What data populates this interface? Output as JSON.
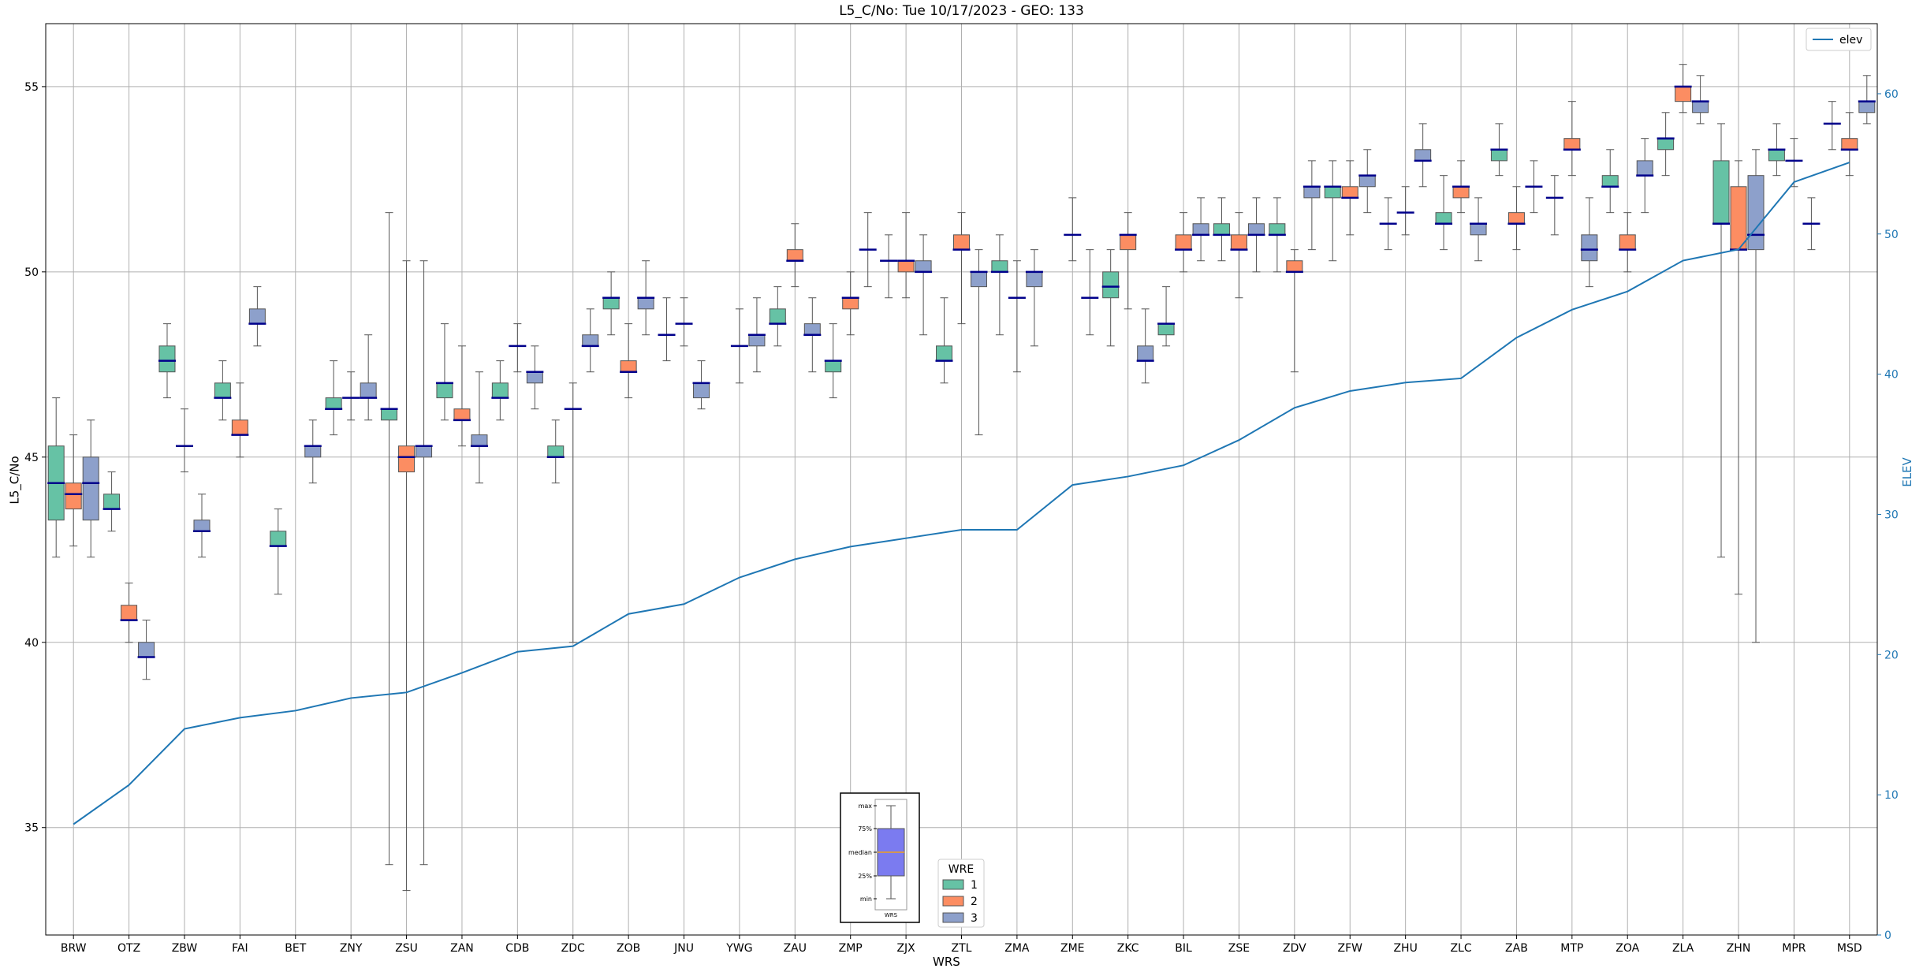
{
  "colors": {
    "wre1": "#66c2a5",
    "wre2": "#fc8d62",
    "wre3": "#8da0cb",
    "median": "#00008b",
    "whisker": "#555555",
    "elev": "#1f77b4",
    "grid": "#b0b0b0",
    "key_box": "#7b7bf0",
    "key_median": "#f0a020"
  },
  "chart_data": {
    "type": "box",
    "title": "L5_C/No: Tue 10/17/2023 - GEO: 133",
    "xlabel": "WRS",
    "ylabel": "L5_C/No",
    "y2label": "ELEV",
    "ylim": [
      32.1,
      56.7
    ],
    "y2lim": [
      0,
      65
    ],
    "yticks": [
      35,
      40,
      45,
      50,
      55
    ],
    "y2ticks": [
      0,
      10,
      20,
      30,
      40,
      50,
      60
    ],
    "grid": true,
    "categories": [
      "BRW",
      "OTZ",
      "ZBW",
      "FAI",
      "BET",
      "ZNY",
      "ZSU",
      "ZAN",
      "CDB",
      "ZDC",
      "ZOB",
      "JNU",
      "YWG",
      "ZAU",
      "ZMP",
      "ZJX",
      "ZTL",
      "ZMA",
      "ZME",
      "ZKC",
      "BIL",
      "ZSE",
      "ZDV",
      "ZFW",
      "ZHU",
      "ZLC",
      "ZAB",
      "MTP",
      "ZOA",
      "ZLA",
      "ZHN",
      "MPR",
      "MSD"
    ],
    "legend": {
      "title": "WRE",
      "entries": [
        "1",
        "2",
        "3"
      ],
      "placement": "bottom-center"
    },
    "line_legend": {
      "label": "elev",
      "placement": "top-right"
    },
    "box_key": {
      "labels": [
        "max",
        "75%",
        "median",
        "25%",
        "min"
      ],
      "caption": "WRS"
    },
    "elevation": [
      7.9,
      10.7,
      14.7,
      15.5,
      16.0,
      16.9,
      17.3,
      18.7,
      20.2,
      20.6,
      22.9,
      23.6,
      25.5,
      26.8,
      27.7,
      28.3,
      28.9,
      28.9,
      32.1,
      32.7,
      33.5,
      35.3,
      37.6,
      38.8,
      39.4,
      39.7,
      42.6,
      44.6,
      45.9,
      48.1,
      48.9,
      53.7,
      55.1
    ],
    "boxes": [
      {
        "wrs": "BRW",
        "wre": 1,
        "min": 42.3,
        "q1": 43.3,
        "median": 44.3,
        "q3": 45.3,
        "max": 46.6
      },
      {
        "wrs": "BRW",
        "wre": 2,
        "min": 42.6,
        "q1": 43.6,
        "median": 44.0,
        "q3": 44.3,
        "max": 45.6
      },
      {
        "wrs": "BRW",
        "wre": 3,
        "min": 42.3,
        "q1": 43.3,
        "median": 44.3,
        "q3": 45.0,
        "max": 46.0
      },
      {
        "wrs": "OTZ",
        "wre": 1,
        "min": 43.0,
        "q1": 43.6,
        "median": 43.6,
        "q3": 44.0,
        "max": 44.6
      },
      {
        "wrs": "OTZ",
        "wre": 2,
        "min": 40.0,
        "q1": 40.6,
        "median": 40.6,
        "q3": 41.0,
        "max": 41.6
      },
      {
        "wrs": "OTZ",
        "wre": 3,
        "min": 39.0,
        "q1": 39.6,
        "median": 39.6,
        "q3": 40.0,
        "max": 40.6
      },
      {
        "wrs": "ZBW",
        "wre": 1,
        "min": 46.6,
        "q1": 47.3,
        "median": 47.6,
        "q3": 48.0,
        "max": 48.6
      },
      {
        "wrs": "ZBW",
        "wre": 2,
        "min": 44.6,
        "q1": 45.3,
        "median": 45.3,
        "q3": 45.3,
        "max": 46.3
      },
      {
        "wrs": "ZBW",
        "wre": 3,
        "min": 42.3,
        "q1": 43.0,
        "median": 43.0,
        "q3": 43.3,
        "max": 44.0
      },
      {
        "wrs": "FAI",
        "wre": 1,
        "min": 46.0,
        "q1": 46.6,
        "median": 46.6,
        "q3": 47.0,
        "max": 47.6
      },
      {
        "wrs": "FAI",
        "wre": 2,
        "min": 45.0,
        "q1": 45.6,
        "median": 45.6,
        "q3": 46.0,
        "max": 47.0
      },
      {
        "wrs": "FAI",
        "wre": 3,
        "min": 48.0,
        "q1": 48.6,
        "median": 48.6,
        "q3": 49.0,
        "max": 49.6
      },
      {
        "wrs": "BET",
        "wre": 1,
        "min": 41.3,
        "q1": 42.6,
        "median": 42.6,
        "q3": 43.0,
        "max": 43.6
      },
      {
        "wrs": "BET",
        "wre": 3,
        "min": 44.3,
        "q1": 45.0,
        "median": 45.3,
        "q3": 45.3,
        "max": 46.0
      },
      {
        "wrs": "ZNY",
        "wre": 1,
        "min": 45.6,
        "q1": 46.3,
        "median": 46.3,
        "q3": 46.6,
        "max": 47.6
      },
      {
        "wrs": "ZNY",
        "wre": 2,
        "min": 46.0,
        "q1": 46.6,
        "median": 46.6,
        "q3": 46.6,
        "max": 47.3
      },
      {
        "wrs": "ZNY",
        "wre": 3,
        "min": 46.0,
        "q1": 46.6,
        "median": 46.6,
        "q3": 47.0,
        "max": 48.3
      },
      {
        "wrs": "ZSU",
        "wre": 1,
        "min": 34.0,
        "q1": 46.0,
        "median": 46.3,
        "q3": 46.3,
        "max": 51.6
      },
      {
        "wrs": "ZSU",
        "wre": 2,
        "min": 33.3,
        "q1": 44.6,
        "median": 45.0,
        "q3": 45.3,
        "max": 50.3
      },
      {
        "wrs": "ZSU",
        "wre": 3,
        "min": 34.0,
        "q1": 45.0,
        "median": 45.3,
        "q3": 45.3,
        "max": 50.3
      },
      {
        "wrs": "ZAN",
        "wre": 1,
        "min": 46.0,
        "q1": 46.6,
        "median": 47.0,
        "q3": 47.0,
        "max": 48.6
      },
      {
        "wrs": "ZAN",
        "wre": 2,
        "min": 45.3,
        "q1": 46.0,
        "median": 46.0,
        "q3": 46.3,
        "max": 48.0
      },
      {
        "wrs": "ZAN",
        "wre": 3,
        "min": 44.3,
        "q1": 45.3,
        "median": 45.3,
        "q3": 45.6,
        "max": 47.3
      },
      {
        "wrs": "CDB",
        "wre": 1,
        "min": 46.0,
        "q1": 46.6,
        "median": 46.6,
        "q3": 47.0,
        "max": 47.6
      },
      {
        "wrs": "CDB",
        "wre": 2,
        "min": 47.3,
        "q1": 48.0,
        "median": 48.0,
        "q3": 48.0,
        "max": 48.6
      },
      {
        "wrs": "CDB",
        "wre": 3,
        "min": 46.3,
        "q1": 47.0,
        "median": 47.3,
        "q3": 47.3,
        "max": 48.0
      },
      {
        "wrs": "ZDC",
        "wre": 1,
        "min": 44.3,
        "q1": 45.0,
        "median": 45.0,
        "q3": 45.3,
        "max": 46.0
      },
      {
        "wrs": "ZDC",
        "wre": 2,
        "min": 40.0,
        "q1": 46.3,
        "median": 46.3,
        "q3": 46.3,
        "max": 47.0
      },
      {
        "wrs": "ZDC",
        "wre": 3,
        "min": 47.3,
        "q1": 48.0,
        "median": 48.0,
        "q3": 48.3,
        "max": 49.0
      },
      {
        "wrs": "ZOB",
        "wre": 1,
        "min": 48.3,
        "q1": 49.0,
        "median": 49.3,
        "q3": 49.3,
        "max": 50.0
      },
      {
        "wrs": "ZOB",
        "wre": 2,
        "min": 46.6,
        "q1": 47.3,
        "median": 47.3,
        "q3": 47.6,
        "max": 48.6
      },
      {
        "wrs": "ZOB",
        "wre": 3,
        "min": 48.3,
        "q1": 49.0,
        "median": 49.3,
        "q3": 49.3,
        "max": 50.3
      },
      {
        "wrs": "JNU",
        "wre": 1,
        "min": 47.6,
        "q1": 48.3,
        "median": 48.3,
        "q3": 48.3,
        "max": 49.3
      },
      {
        "wrs": "JNU",
        "wre": 2,
        "min": 48.0,
        "q1": 48.6,
        "median": 48.6,
        "q3": 48.6,
        "max": 49.3
      },
      {
        "wrs": "JNU",
        "wre": 3,
        "min": 46.3,
        "q1": 46.6,
        "median": 47.0,
        "q3": 47.0,
        "max": 47.6
      },
      {
        "wrs": "YWG",
        "wre": 2,
        "min": 47.0,
        "q1": 48.0,
        "median": 48.0,
        "q3": 48.0,
        "max": 49.0
      },
      {
        "wrs": "YWG",
        "wre": 3,
        "min": 47.3,
        "q1": 48.0,
        "median": 48.3,
        "q3": 48.3,
        "max": 49.3
      },
      {
        "wrs": "ZAU",
        "wre": 1,
        "min": 48.0,
        "q1": 48.6,
        "median": 48.6,
        "q3": 49.0,
        "max": 49.6
      },
      {
        "wrs": "ZAU",
        "wre": 2,
        "min": 49.6,
        "q1": 50.3,
        "median": 50.3,
        "q3": 50.6,
        "max": 51.3
      },
      {
        "wrs": "ZAU",
        "wre": 3,
        "min": 47.3,
        "q1": 48.3,
        "median": 48.3,
        "q3": 48.6,
        "max": 49.3
      },
      {
        "wrs": "ZMP",
        "wre": 1,
        "min": 46.6,
        "q1": 47.3,
        "median": 47.6,
        "q3": 47.6,
        "max": 48.6
      },
      {
        "wrs": "ZMP",
        "wre": 2,
        "min": 48.3,
        "q1": 49.0,
        "median": 49.3,
        "q3": 49.3,
        "max": 50.0
      },
      {
        "wrs": "ZMP",
        "wre": 3,
        "min": 49.6,
        "q1": 50.6,
        "median": 50.6,
        "q3": 50.6,
        "max": 51.6
      },
      {
        "wrs": "ZJX",
        "wre": 1,
        "min": 49.3,
        "q1": 50.3,
        "median": 50.3,
        "q3": 50.3,
        "max": 51.0
      },
      {
        "wrs": "ZJX",
        "wre": 2,
        "min": 49.3,
        "q1": 50.0,
        "median": 50.3,
        "q3": 50.3,
        "max": 51.6
      },
      {
        "wrs": "ZJX",
        "wre": 3,
        "min": 48.3,
        "q1": 50.0,
        "median": 50.0,
        "q3": 50.3,
        "max": 51.0
      },
      {
        "wrs": "ZTL",
        "wre": 1,
        "min": 47.0,
        "q1": 47.6,
        "median": 47.6,
        "q3": 48.0,
        "max": 49.3
      },
      {
        "wrs": "ZTL",
        "wre": 2,
        "min": 48.6,
        "q1": 50.6,
        "median": 50.6,
        "q3": 51.0,
        "max": 51.6
      },
      {
        "wrs": "ZTL",
        "wre": 3,
        "min": 45.6,
        "q1": 49.6,
        "median": 50.0,
        "q3": 50.0,
        "max": 50.6
      },
      {
        "wrs": "ZMA",
        "wre": 1,
        "min": 48.3,
        "q1": 50.0,
        "median": 50.0,
        "q3": 50.3,
        "max": 51.0
      },
      {
        "wrs": "ZMA",
        "wre": 2,
        "min": 47.3,
        "q1": 49.3,
        "median": 49.3,
        "q3": 49.3,
        "max": 50.3
      },
      {
        "wrs": "ZMA",
        "wre": 3,
        "min": 48.0,
        "q1": 49.6,
        "median": 50.0,
        "q3": 50.0,
        "max": 50.6
      },
      {
        "wrs": "ZME",
        "wre": 2,
        "min": 50.3,
        "q1": 51.0,
        "median": 51.0,
        "q3": 51.0,
        "max": 52.0
      },
      {
        "wrs": "ZME",
        "wre": 3,
        "min": 48.3,
        "q1": 49.3,
        "median": 49.3,
        "q3": 49.3,
        "max": 50.6
      },
      {
        "wrs": "ZKC",
        "wre": 1,
        "min": 48.0,
        "q1": 49.3,
        "median": 49.6,
        "q3": 50.0,
        "max": 50.6
      },
      {
        "wrs": "ZKC",
        "wre": 2,
        "min": 49.0,
        "q1": 50.6,
        "median": 51.0,
        "q3": 51.0,
        "max": 51.6
      },
      {
        "wrs": "ZKC",
        "wre": 3,
        "min": 47.0,
        "q1": 47.6,
        "median": 47.6,
        "q3": 48.0,
        "max": 49.0
      },
      {
        "wrs": "BIL",
        "wre": 1,
        "min": 48.0,
        "q1": 48.3,
        "median": 48.6,
        "q3": 48.6,
        "max": 49.6
      },
      {
        "wrs": "BIL",
        "wre": 2,
        "min": 50.0,
        "q1": 50.6,
        "median": 50.6,
        "q3": 51.0,
        "max": 51.6
      },
      {
        "wrs": "BIL",
        "wre": 3,
        "min": 50.3,
        "q1": 51.0,
        "median": 51.0,
        "q3": 51.3,
        "max": 52.0
      },
      {
        "wrs": "ZSE",
        "wre": 1,
        "min": 50.3,
        "q1": 51.0,
        "median": 51.0,
        "q3": 51.3,
        "max": 52.0
      },
      {
        "wrs": "ZSE",
        "wre": 2,
        "min": 49.3,
        "q1": 50.6,
        "median": 50.6,
        "q3": 51.0,
        "max": 51.6
      },
      {
        "wrs": "ZSE",
        "wre": 3,
        "min": 50.0,
        "q1": 51.0,
        "median": 51.0,
        "q3": 51.3,
        "max": 52.0
      },
      {
        "wrs": "ZDV",
        "wre": 1,
        "min": 50.0,
        "q1": 51.0,
        "median": 51.0,
        "q3": 51.3,
        "max": 52.0
      },
      {
        "wrs": "ZDV",
        "wre": 2,
        "min": 47.3,
        "q1": 50.0,
        "median": 50.0,
        "q3": 50.3,
        "max": 50.6
      },
      {
        "wrs": "ZDV",
        "wre": 3,
        "min": 50.6,
        "q1": 52.0,
        "median": 52.3,
        "q3": 52.3,
        "max": 53.0
      },
      {
        "wrs": "ZFW",
        "wre": 1,
        "min": 50.3,
        "q1": 52.0,
        "median": 52.3,
        "q3": 52.3,
        "max": 53.0
      },
      {
        "wrs": "ZFW",
        "wre": 2,
        "min": 51.0,
        "q1": 52.0,
        "median": 52.0,
        "q3": 52.3,
        "max": 53.0
      },
      {
        "wrs": "ZFW",
        "wre": 3,
        "min": 51.6,
        "q1": 52.3,
        "median": 52.6,
        "q3": 52.6,
        "max": 53.3
      },
      {
        "wrs": "ZHU",
        "wre": 1,
        "min": 50.6,
        "q1": 51.3,
        "median": 51.3,
        "q3": 51.3,
        "max": 52.0
      },
      {
        "wrs": "ZHU",
        "wre": 2,
        "min": 51.0,
        "q1": 51.6,
        "median": 51.6,
        "q3": 51.6,
        "max": 52.3
      },
      {
        "wrs": "ZHU",
        "wre": 3,
        "min": 52.3,
        "q1": 53.0,
        "median": 53.0,
        "q3": 53.3,
        "max": 54.0
      },
      {
        "wrs": "ZLC",
        "wre": 1,
        "min": 50.6,
        "q1": 51.3,
        "median": 51.3,
        "q3": 51.6,
        "max": 52.6
      },
      {
        "wrs": "ZLC",
        "wre": 2,
        "min": 51.6,
        "q1": 52.0,
        "median": 52.3,
        "q3": 52.3,
        "max": 53.0
      },
      {
        "wrs": "ZLC",
        "wre": 3,
        "min": 50.3,
        "q1": 51.0,
        "median": 51.3,
        "q3": 51.3,
        "max": 52.0
      },
      {
        "wrs": "ZAB",
        "wre": 1,
        "min": 52.6,
        "q1": 53.0,
        "median": 53.3,
        "q3": 53.3,
        "max": 54.0
      },
      {
        "wrs": "ZAB",
        "wre": 2,
        "min": 50.6,
        "q1": 51.3,
        "median": 51.3,
        "q3": 51.6,
        "max": 52.3
      },
      {
        "wrs": "ZAB",
        "wre": 3,
        "min": 51.6,
        "q1": 52.3,
        "median": 52.3,
        "q3": 52.3,
        "max": 53.0
      },
      {
        "wrs": "MTP",
        "wre": 1,
        "min": 51.0,
        "q1": 52.0,
        "median": 52.0,
        "q3": 52.0,
        "max": 52.6
      },
      {
        "wrs": "MTP",
        "wre": 2,
        "min": 52.6,
        "q1": 53.3,
        "median": 53.3,
        "q3": 53.6,
        "max": 54.6
      },
      {
        "wrs": "MTP",
        "wre": 3,
        "min": 49.6,
        "q1": 50.3,
        "median": 50.6,
        "q3": 51.0,
        "max": 52.0
      },
      {
        "wrs": "ZOA",
        "wre": 1,
        "min": 51.6,
        "q1": 52.3,
        "median": 52.3,
        "q3": 52.6,
        "max": 53.3
      },
      {
        "wrs": "ZOA",
        "wre": 2,
        "min": 50.0,
        "q1": 50.6,
        "median": 50.6,
        "q3": 51.0,
        "max": 51.6
      },
      {
        "wrs": "ZOA",
        "wre": 3,
        "min": 51.6,
        "q1": 52.6,
        "median": 52.6,
        "q3": 53.0,
        "max": 53.6
      },
      {
        "wrs": "ZLA",
        "wre": 1,
        "min": 52.6,
        "q1": 53.3,
        "median": 53.6,
        "q3": 53.6,
        "max": 54.3
      },
      {
        "wrs": "ZLA",
        "wre": 2,
        "min": 54.3,
        "q1": 54.6,
        "median": 55.0,
        "q3": 55.0,
        "max": 55.6
      },
      {
        "wrs": "ZLA",
        "wre": 3,
        "min": 54.0,
        "q1": 54.3,
        "median": 54.6,
        "q3": 54.6,
        "max": 55.3
      },
      {
        "wrs": "ZHN",
        "wre": 1,
        "min": 42.3,
        "q1": 51.3,
        "median": 51.3,
        "q3": 53.0,
        "max": 54.0
      },
      {
        "wrs": "ZHN",
        "wre": 2,
        "min": 41.3,
        "q1": 50.6,
        "median": 50.6,
        "q3": 52.3,
        "max": 53.0
      },
      {
        "wrs": "ZHN",
        "wre": 3,
        "min": 40.0,
        "q1": 50.6,
        "median": 51.0,
        "q3": 52.6,
        "max": 53.3
      },
      {
        "wrs": "MPR",
        "wre": 1,
        "min": 52.6,
        "q1": 53.0,
        "median": 53.3,
        "q3": 53.3,
        "max": 54.0
      },
      {
        "wrs": "MPR",
        "wre": 2,
        "min": 52.3,
        "q1": 53.0,
        "median": 53.0,
        "q3": 53.0,
        "max": 53.6
      },
      {
        "wrs": "MPR",
        "wre": 3,
        "min": 50.6,
        "q1": 51.3,
        "median": 51.3,
        "q3": 51.3,
        "max": 52.0
      },
      {
        "wrs": "MSD",
        "wre": 1,
        "min": 53.3,
        "q1": 54.0,
        "median": 54.0,
        "q3": 54.0,
        "max": 54.6
      },
      {
        "wrs": "MSD",
        "wre": 2,
        "min": 52.6,
        "q1": 53.3,
        "median": 53.3,
        "q3": 53.6,
        "max": 54.3
      },
      {
        "wrs": "MSD",
        "wre": 3,
        "min": 54.0,
        "q1": 54.3,
        "median": 54.6,
        "q3": 54.6,
        "max": 55.3
      }
    ]
  }
}
